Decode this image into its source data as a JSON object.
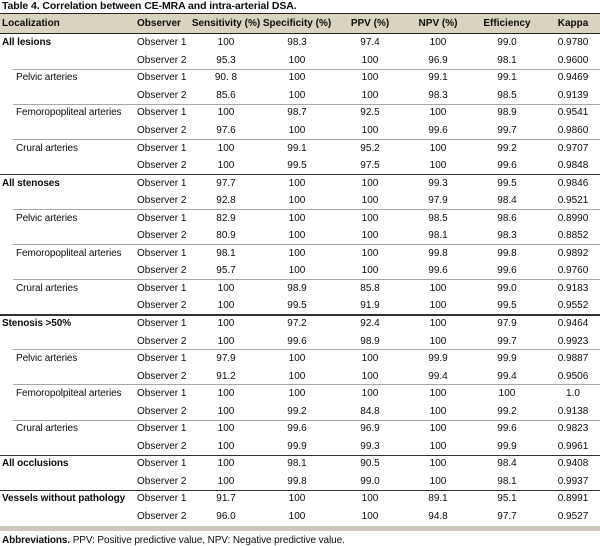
{
  "title": "Table 4. Correlation between CE-MRA and intra-arterial DSA.",
  "columns": [
    "Localization",
    "Observer",
    "Sensitivity (%)",
    "Specificity (%)",
    "PPV (%)",
    "NPV (%)",
    "Efficiency",
    "Kappa"
  ],
  "groups": [
    {
      "label": "All lesions",
      "major": true,
      "rows": [
        [
          "Observer 1",
          "100",
          "98.3",
          "97.4",
          "100",
          "99.0",
          "0.9780"
        ],
        [
          "Observer 2",
          "95.3",
          "100",
          "100",
          "96.9",
          "98.1",
          "0.9600"
        ]
      ]
    },
    {
      "label": "Pelvic arteries",
      "major": false,
      "rows": [
        [
          "Observer 1",
          "90. 8",
          "100",
          "100",
          "99.1",
          "99.1",
          "0.9469"
        ],
        [
          "Observer 2",
          "85.6",
          "100",
          "100",
          "98.3",
          "98.5",
          "0.9139"
        ]
      ]
    },
    {
      "label": "Femoropopliteal arteries",
      "major": false,
      "rows": [
        [
          "Observer 1",
          "100",
          "98.7",
          "92.5",
          "100",
          "98.9",
          "0.9541"
        ],
        [
          "Observer 2",
          "97.6",
          "100",
          "100",
          "99.6",
          "99.7",
          "0.9860"
        ]
      ]
    },
    {
      "label": "Crural arteries",
      "major": false,
      "rows": [
        [
          "Observer 1",
          "100",
          "99.1",
          "95.2",
          "100",
          "99.2",
          "0.9707"
        ],
        [
          "Observer 2",
          "100",
          "99.5",
          "97.5",
          "100",
          "99.6",
          "0.9848"
        ]
      ]
    },
    {
      "label": "All stenoses",
      "major": true,
      "rows": [
        [
          "Observer 1",
          "97.7",
          "100",
          "100",
          "99.3",
          "99.5",
          "0.9846"
        ],
        [
          "Observer 2",
          "92.8",
          "100",
          "100",
          "97.9",
          "98.4",
          "0.9521"
        ]
      ]
    },
    {
      "label": "Pelvic arteries",
      "major": false,
      "rows": [
        [
          "Observer 1",
          "82.9",
          "100",
          "100",
          "98.5",
          "98.6",
          "0.8990"
        ],
        [
          "Observer 2",
          "80.9",
          "100",
          "100",
          "98.1",
          "98.3",
          "0.8852"
        ]
      ]
    },
    {
      "label": "Femoropopliteal arteries",
      "major": false,
      "rows": [
        [
          "Observer 1",
          "98.1",
          "100",
          "100",
          "99.8",
          "99.8",
          "0.9892"
        ],
        [
          "Observer 2",
          "95.7",
          "100",
          "100",
          "99.6",
          "99.6",
          "0.9760"
        ]
      ]
    },
    {
      "label": "Crural arteries",
      "major": false,
      "rows": [
        [
          "Observer 1",
          "100",
          "98.9",
          "85.8",
          "100",
          "99.0",
          "0.9183"
        ],
        [
          "Observer 2",
          "100",
          "99.5",
          "91.9",
          "100",
          "99.5",
          "0.9552"
        ]
      ]
    },
    {
      "label": "Stenosis >50%",
      "major": true,
      "rows": [
        [
          "Observer 1",
          "100",
          "97.2",
          "92.4",
          "100",
          "97.9",
          "0.9464"
        ],
        [
          "Observer 2",
          "100",
          "99.6",
          "98.9",
          "100",
          "99.7",
          "0.9923"
        ]
      ]
    },
    {
      "label": "Pelvic arteries",
      "major": false,
      "rows": [
        [
          "Observer 1",
          "97.9",
          "100",
          "100",
          "99.9",
          "99.9",
          "0.9887"
        ],
        [
          "Observer 2",
          "91.2",
          "100",
          "100",
          "99.4",
          "99.4",
          "0.9506"
        ]
      ]
    },
    {
      "label": "Femoropolpiteal arteries",
      "major": false,
      "rows": [
        [
          "Observer 1",
          "100",
          "100",
          "100",
          "100",
          "100",
          "1.0"
        ],
        [
          "Observer 2",
          "100",
          "99.2",
          "84.8",
          "100",
          "99.2",
          "0.9138"
        ]
      ]
    },
    {
      "label": "Crural arteries",
      "major": false,
      "rows": [
        [
          "Observer 1",
          "100",
          "99.6",
          "96.9",
          "100",
          "99.6",
          "0.9823"
        ],
        [
          "Observer 2",
          "100",
          "99.9",
          "99.3",
          "100",
          "99.9",
          "0.9961"
        ]
      ]
    },
    {
      "label": "All occlusions",
      "major": true,
      "rows": [
        [
          "Observer 1",
          "100",
          "98.1",
          "90.5",
          "100",
          "98.4",
          "0.9408"
        ],
        [
          "Observer 2",
          "100",
          "99.8",
          "99.0",
          "100",
          "98.1",
          "0.9937"
        ]
      ]
    },
    {
      "label": "Vessels without pathology",
      "major": true,
      "rows": [
        [
          "Observer 1",
          "91.7",
          "100",
          "100",
          "89.1",
          "95.1",
          "0.8991"
        ],
        [
          "Observer 2",
          "96.0",
          "100",
          "100",
          "94.8",
          "97.7",
          "0.9527"
        ]
      ]
    }
  ],
  "footnote": {
    "bold": "Abbreviations.",
    "rest": " PPV: Positive predictive value, NPV: Negative predictive value."
  },
  "colors": {
    "header_bg": "#d8d4bf",
    "major_rule": "#33312d",
    "minor_rule": "#a9a79f",
    "bottom_band": "#cdcabc",
    "text": "#0d0c0a"
  }
}
